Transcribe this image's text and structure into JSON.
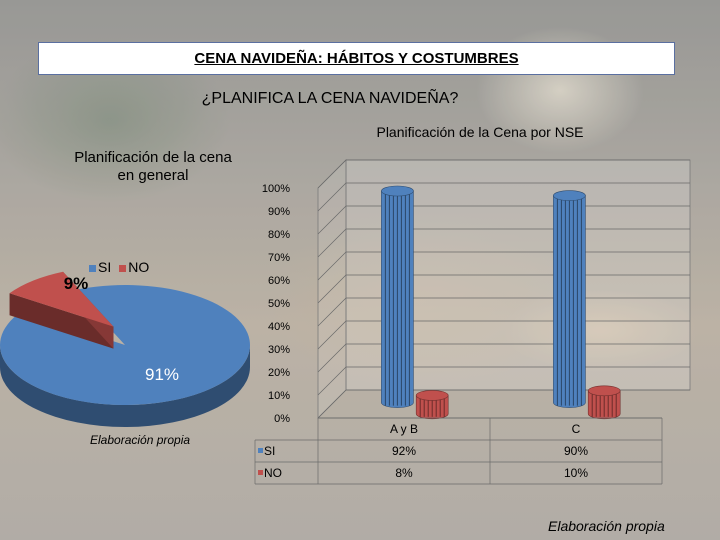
{
  "title": "CENA NAVIDEÑA: HÁBITOS Y COSTUMBRES",
  "subtitle": "¿PLANIFICA LA CENA NAVIDEÑA?",
  "colors": {
    "si": "#4f81bd",
    "no": "#c0504d"
  },
  "chart_data": [
    {
      "type": "pie",
      "title": "Planificación de la cena en general",
      "labels": [
        "SI",
        "NO"
      ],
      "values": [
        91,
        9
      ],
      "data_labels": [
        "91%",
        "9%"
      ],
      "legend": "top",
      "note": "Elaboración propia"
    },
    {
      "type": "bar",
      "title": "Planificación de la Cena por NSE",
      "categories": [
        "A y B",
        "C"
      ],
      "series": [
        {
          "name": "SI",
          "values": [
            92,
            90
          ],
          "labels": [
            "92%",
            "90%"
          ]
        },
        {
          "name": "NO",
          "values": [
            8,
            10
          ],
          "labels": [
            "8%",
            "10%"
          ]
        }
      ],
      "ylim": [
        0,
        100
      ],
      "yticks": [
        "0%",
        "10%",
        "20%",
        "30%",
        "40%",
        "50%",
        "60%",
        "70%",
        "80%",
        "90%",
        "100%"
      ],
      "data_table": true,
      "note": "Elaboración propia"
    }
  ]
}
